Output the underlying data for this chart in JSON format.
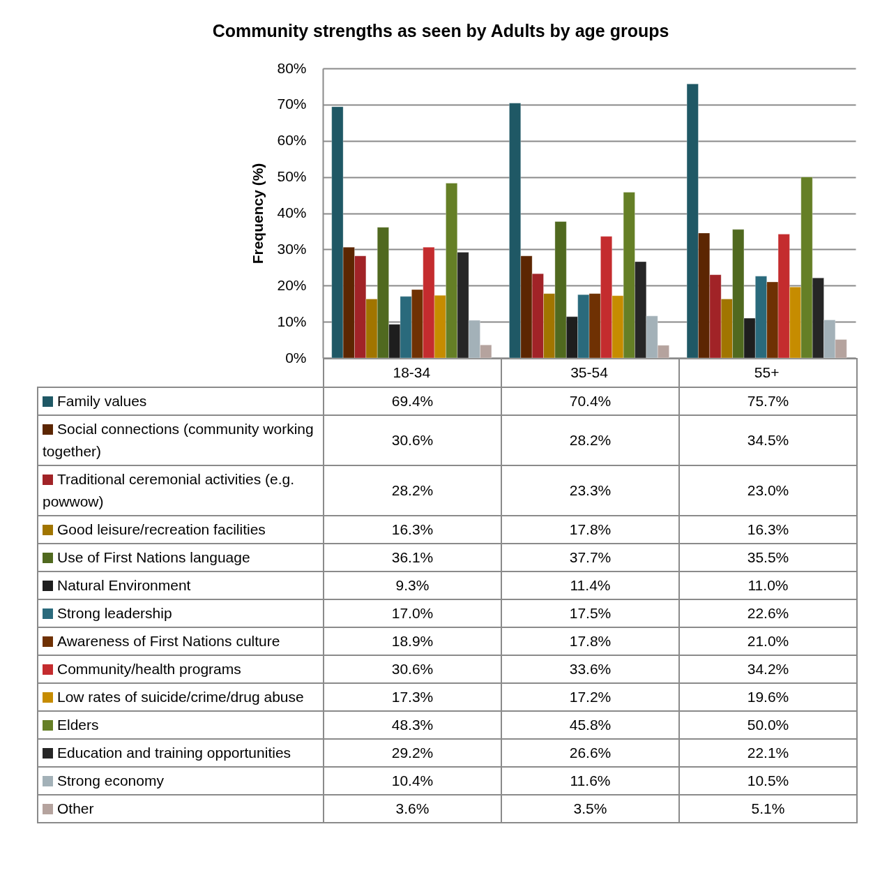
{
  "chart_data": {
    "type": "bar",
    "title": "Community strengths as seen by Adults by age groups",
    "ylabel": "Frequency (%)",
    "categories": [
      "18-34",
      "35-54",
      "55+"
    ],
    "ylim": [
      0,
      80
    ],
    "yticks": [
      {
        "value": 0,
        "label": "0%"
      },
      {
        "value": 10,
        "label": "10%"
      },
      {
        "value": 20,
        "label": "20%"
      },
      {
        "value": 30,
        "label": "30%"
      },
      {
        "value": 40,
        "label": "40%"
      },
      {
        "value": 50,
        "label": "50%"
      },
      {
        "value": 60,
        "label": "60%"
      },
      {
        "value": 70,
        "label": "70%"
      },
      {
        "value": 80,
        "label": "80%"
      }
    ],
    "grid": "y",
    "legend": "bottom",
    "series": [
      {
        "name": "Family values",
        "color": "#1f5865",
        "values": [
          69.4,
          70.4,
          75.7
        ],
        "value_labels": [
          "69.4%",
          "70.4%",
          "75.7%"
        ]
      },
      {
        "name": "Social connections (community working together)",
        "color": "#5c2602",
        "values": [
          30.6,
          28.2,
          34.5
        ],
        "value_labels": [
          "30.6%",
          "28.2%",
          "34.5%"
        ]
      },
      {
        "name": "Traditional ceremonial activities (e.g. powwow)",
        "color": "#a12327",
        "values": [
          28.2,
          23.3,
          23.0
        ],
        "value_labels": [
          "28.2%",
          "23.3%",
          "23.0%"
        ]
      },
      {
        "name": "Good leisure/recreation facilities",
        "color": "#a17500",
        "values": [
          16.3,
          17.8,
          16.3
        ],
        "value_labels": [
          "16.3%",
          "17.8%",
          "16.3%"
        ]
      },
      {
        "name": "Use of First Nations language",
        "color": "#50691f",
        "values": [
          36.1,
          37.7,
          35.5
        ],
        "value_labels": [
          "36.1%",
          "37.7%",
          "35.5%"
        ]
      },
      {
        "name": "Natural Environment",
        "color": "#1e1e1e",
        "values": [
          9.3,
          11.4,
          11.0
        ],
        "value_labels": [
          "9.3%",
          "11.4%",
          "11.0%"
        ]
      },
      {
        "name": "Strong leadership",
        "color": "#2a6a7c",
        "values": [
          17.0,
          17.5,
          22.6
        ],
        "value_labels": [
          "17.0%",
          "17.5%",
          "22.6%"
        ]
      },
      {
        "name": "Awareness of First Nations culture",
        "color": "#6f3103",
        "values": [
          18.9,
          17.8,
          21.0
        ],
        "value_labels": [
          "18.9%",
          "17.8%",
          "21.0%"
        ]
      },
      {
        "name": "Community/health programs",
        "color": "#c42c2e",
        "values": [
          30.6,
          33.6,
          34.2
        ],
        "value_labels": [
          "30.6%",
          "33.6%",
          "34.2%"
        ]
      },
      {
        "name": "Low rates of suicide/crime/drug abuse",
        "color": "#c68c00",
        "values": [
          17.3,
          17.2,
          19.6
        ],
        "value_labels": [
          "17.3%",
          "17.2%",
          "19.6%"
        ]
      },
      {
        "name": "Elders",
        "color": "#657f26",
        "values": [
          48.3,
          45.8,
          50.0
        ],
        "value_labels": [
          "48.3%",
          "45.8%",
          "50.0%"
        ]
      },
      {
        "name": "Education and training opportunities",
        "color": "#262626",
        "values": [
          29.2,
          26.6,
          22.1
        ],
        "value_labels": [
          "29.2%",
          "26.6%",
          "22.1%"
        ]
      },
      {
        "name": "Strong economy",
        "color": "#a3b1b8",
        "values": [
          10.4,
          11.6,
          10.5
        ],
        "value_labels": [
          "10.4%",
          "11.6%",
          "10.5%"
        ]
      },
      {
        "name": "Other",
        "color": "#b5a39e",
        "values": [
          3.6,
          3.5,
          5.1
        ],
        "value_labels": [
          "3.6%",
          "3.5%",
          "5.1%"
        ]
      }
    ]
  }
}
